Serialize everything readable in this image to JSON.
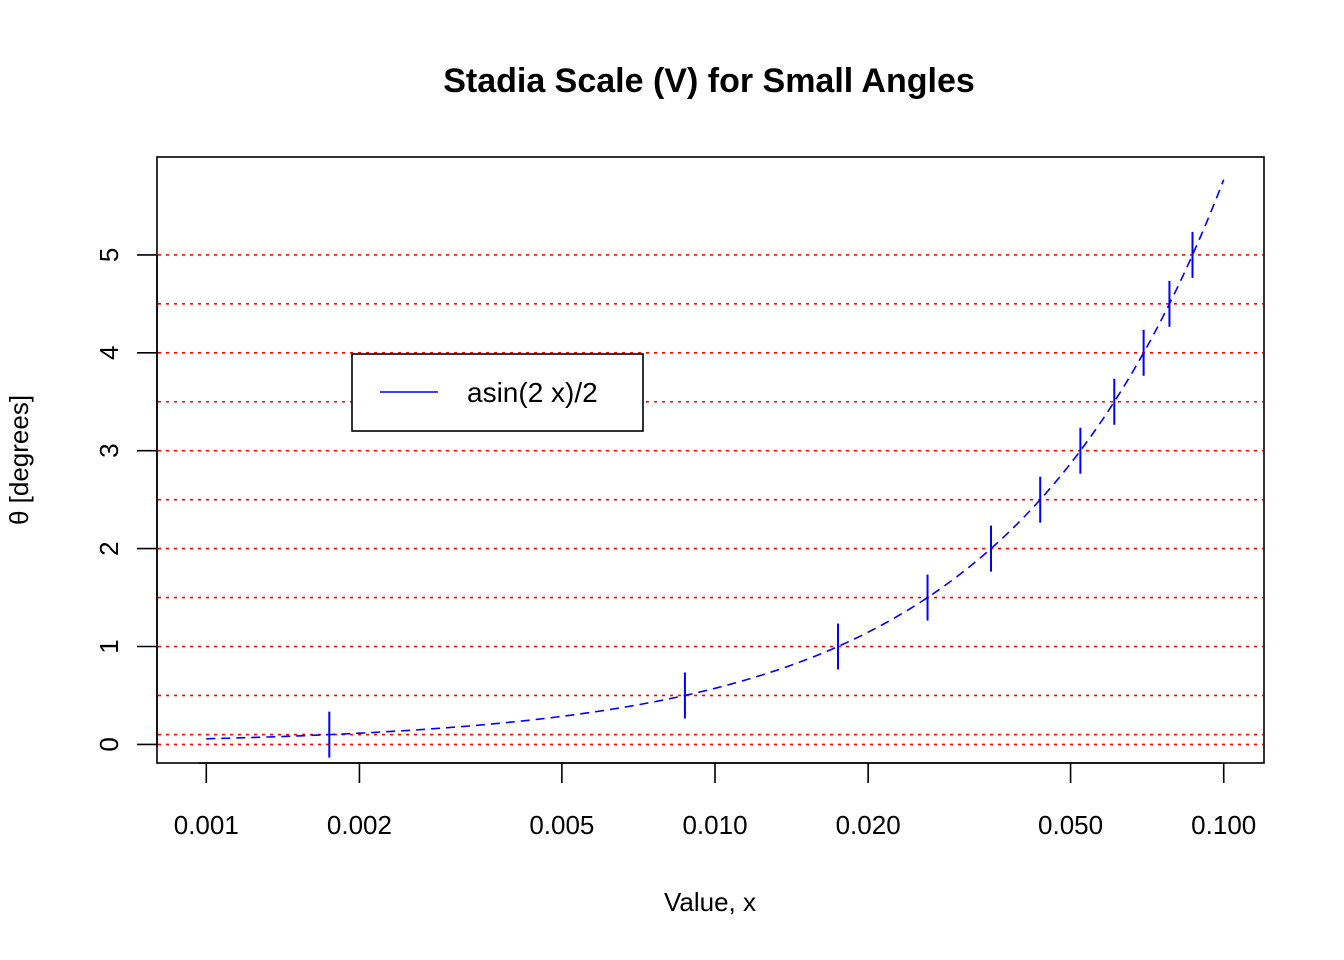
{
  "chart_data": {
    "type": "line",
    "title": "Stadia Scale (V) for Small Angles",
    "xlabel": "Value, x",
    "ylabel": "θ [degrees]",
    "x_scale": "log",
    "xlim": [
      0.0008,
      0.12
    ],
    "ylim": [
      -0.19,
      6.0
    ],
    "x_ticks": [
      0.001,
      0.002,
      0.005,
      0.01,
      0.02,
      0.05,
      0.1
    ],
    "x_tick_labels": [
      "0.001",
      "0.002",
      "0.005",
      "0.010",
      "0.020",
      "0.050",
      "0.100"
    ],
    "y_ticks": [
      0,
      1,
      2,
      3,
      4,
      5
    ],
    "y_tick_labels": [
      "0",
      "1",
      "2",
      "3",
      "4",
      "5"
    ],
    "reference_lines": [
      0,
      0.1,
      0.5,
      1,
      1.5,
      2,
      2.5,
      3,
      3.5,
      4,
      4.5,
      5
    ],
    "reference_line_color": "#ff0000",
    "series": [
      {
        "name": "asin(2 x)/2",
        "color": "#0000ff",
        "style": "dashed",
        "x_range": [
          0.001,
          0.1
        ],
        "formula": "asin(2x)/2 in degrees"
      }
    ],
    "marker_points": [
      {
        "x": 0.001745,
        "y": 0.1
      },
      {
        "x": 0.008727,
        "y": 0.5
      },
      {
        "x": 0.01745,
        "y": 1.0
      },
      {
        "x": 0.026168,
        "y": 1.5
      },
      {
        "x": 0.034878,
        "y": 2.0
      },
      {
        "x": 0.043578,
        "y": 2.5
      },
      {
        "x": 0.052264,
        "y": 3.0
      },
      {
        "x": 0.060935,
        "y": 3.5
      },
      {
        "x": 0.069587,
        "y": 4.0
      },
      {
        "x": 0.078217,
        "y": 4.5
      },
      {
        "x": 0.086824,
        "y": 5.0
      }
    ],
    "legend": {
      "entries": [
        {
          "label": "asin(2 x)/2",
          "color": "#0000ff"
        }
      ],
      "placement": "upper-left"
    }
  }
}
